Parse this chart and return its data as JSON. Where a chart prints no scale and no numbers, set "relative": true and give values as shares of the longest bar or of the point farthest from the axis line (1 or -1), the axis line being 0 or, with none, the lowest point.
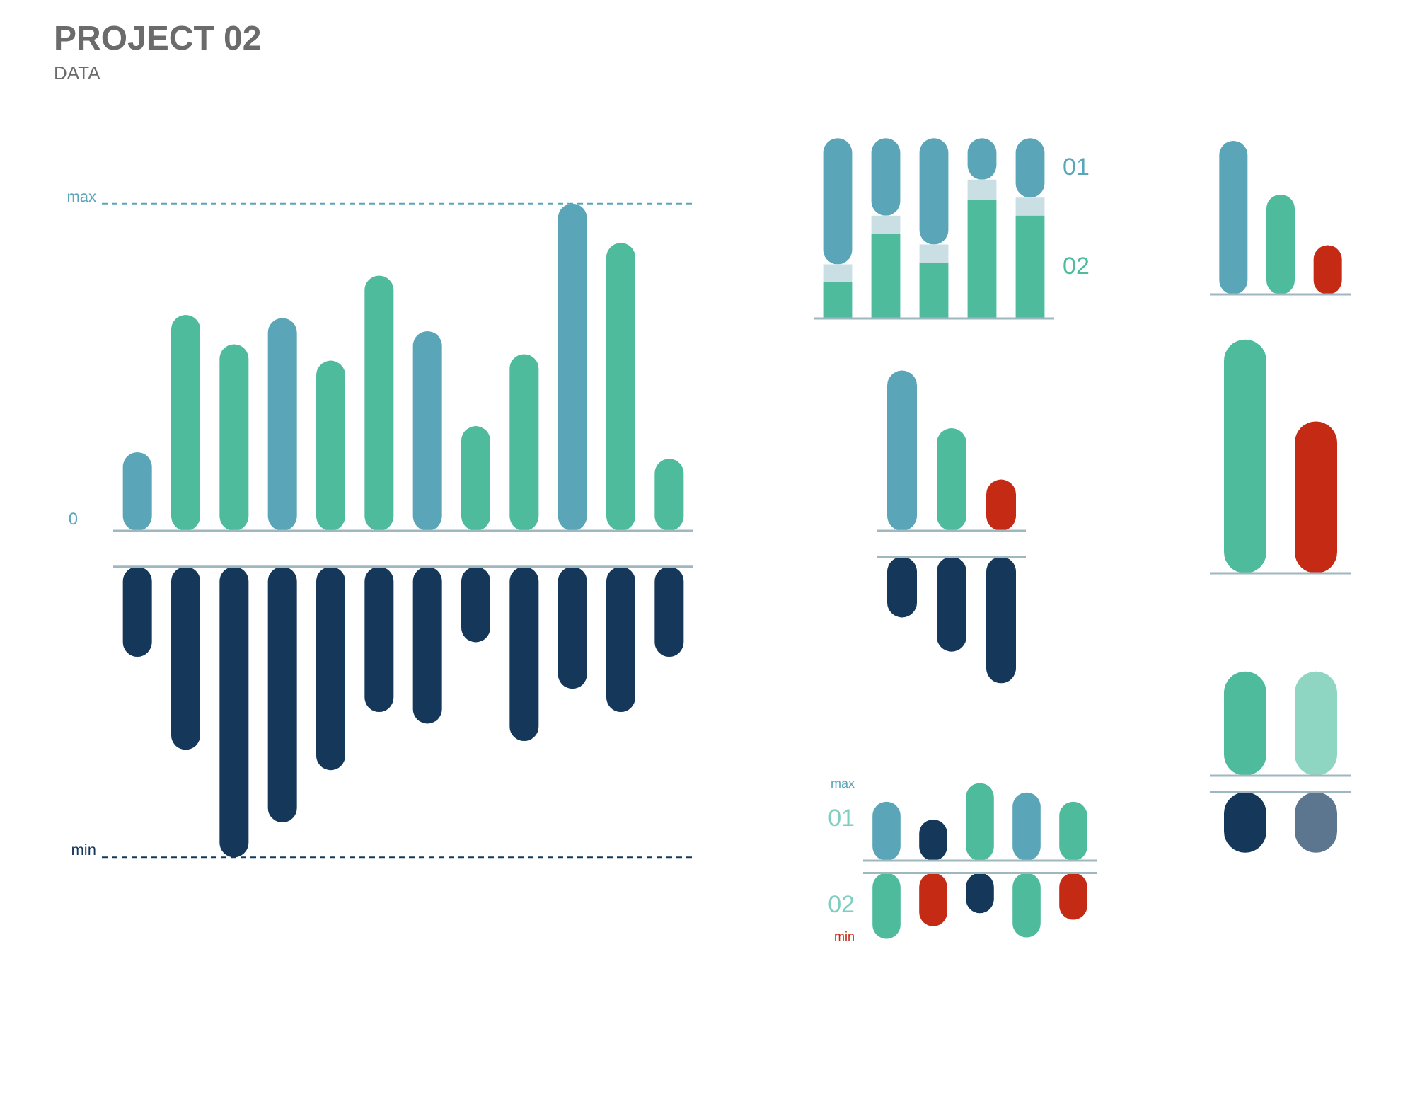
{
  "chart_data": [
    {
      "type": "bar",
      "title": "PROJECT 02",
      "subtitle": "DATA",
      "categories": [
        null,
        null,
        null,
        null,
        null,
        null,
        null,
        null,
        null,
        null,
        null,
        null
      ],
      "relative": true,
      "series": [
        {
          "colors": [
            "#5aa5b8",
            "#4dbb9c",
            "#4dbb9c",
            "#5aa5b8",
            "#4dbb9c",
            "#4dbb9c",
            "#5aa5b8",
            "#4dbb9c",
            "#4dbb9c",
            "#5aa5b8",
            "#4dbb9c",
            "#4dbb9c"
          ],
          "values": [
            0.24,
            0.66,
            0.57,
            0.65,
            0.52,
            0.78,
            0.61,
            0.32,
            0.54,
            1,
            0.88,
            0.22
          ]
        }
      ],
      "ref_lines": [
        {
          "axis": "y",
          "value": 1,
          "label": "max",
          "color": "#5aa5b8",
          "line_style": "dashed"
        }
      ],
      "annotations": [
        "0"
      ]
    },
    {
      "type": "bar",
      "categories": [
        null,
        null,
        null,
        null,
        null,
        null,
        null,
        null,
        null,
        null,
        null,
        null
      ],
      "relative": true,
      "series": [
        {
          "color": "#15385a",
          "values": [
            -0.31,
            -0.63,
            -1,
            -0.88,
            -0.7,
            -0.5,
            -0.54,
            -0.26,
            -0.6,
            -0.42,
            -0.5,
            -0.31
          ]
        }
      ],
      "ref_lines": [
        {
          "axis": "y",
          "value": -1,
          "label": "min",
          "color": "#15385a",
          "line_style": "dashed"
        }
      ]
    },
    {
      "type": "bar",
      "categories": [
        null,
        null,
        null,
        null,
        null
      ],
      "relative": true,
      "stacked": true,
      "legend": "right",
      "series": [
        {
          "name": "02",
          "color": "#4dbb9c",
          "values": [
            0.2,
            0.47,
            0.31,
            0.66,
            0.57
          ]
        },
        {
          "color": "#c9dfe4",
          "values": [
            0.1,
            0.1,
            0.1,
            0.11,
            0.1
          ]
        },
        {
          "name": "01",
          "color": "#5aa5b8",
          "values": [
            0.7,
            0.43,
            0.59,
            0.23,
            0.33
          ]
        }
      ]
    },
    {
      "type": "bar",
      "categories": [
        null,
        null,
        null
      ],
      "relative": true,
      "series": [
        {
          "colors": [
            "#5aa5b8",
            "#4dbb9c",
            "#c42a14"
          ],
          "values": [
            1,
            0.65,
            0.32
          ]
        }
      ]
    },
    {
      "type": "bar",
      "categories": [
        null,
        null,
        null
      ],
      "relative": true,
      "series": [
        {
          "colors": [
            "#5aa5b8",
            "#4dbb9c",
            "#c42a14"
          ],
          "values": [
            1,
            0.64,
            0.32
          ]
        }
      ]
    },
    {
      "type": "bar",
      "categories": [
        null,
        null,
        null
      ],
      "relative": true,
      "series": [
        {
          "color": "#15385a",
          "values": [
            -0.48,
            -0.75,
            -1
          ]
        }
      ]
    },
    {
      "type": "bar",
      "categories": [
        null,
        null
      ],
      "relative": true,
      "series": [
        {
          "colors": [
            "#4dbb9c",
            "#c42a14"
          ],
          "values": [
            1,
            0.65
          ]
        }
      ]
    },
    {
      "type": "bar",
      "categories": [
        null,
        null,
        null,
        null,
        null
      ],
      "relative": true,
      "series": [
        {
          "colors": [
            "#5aa5b8",
            "#15385a",
            "#4dbb9c",
            "#5aa5b8",
            "#4dbb9c"
          ],
          "values": [
            0.76,
            0.53,
            1,
            0.88,
            0.76
          ]
        }
      ],
      "annotations": [
        "max",
        "01"
      ]
    },
    {
      "type": "bar",
      "categories": [
        null,
        null,
        null,
        null,
        null
      ],
      "relative": true,
      "series": [
        {
          "colors": [
            "#4dbb9c",
            "#c42a14",
            "#15385a",
            "#4dbb9c",
            "#c42a14"
          ],
          "values": [
            -1,
            -0.81,
            -0.61,
            -0.98,
            -0.71
          ]
        }
      ],
      "annotations": [
        "02",
        "min"
      ]
    },
    {
      "type": "bar",
      "categories": [
        null,
        null
      ],
      "relative": true,
      "series": [
        {
          "colors": [
            "#4dbb9c",
            "#8fd6c2"
          ],
          "values": [
            1,
            1
          ]
        }
      ]
    },
    {
      "type": "bar",
      "categories": [
        null,
        null
      ],
      "relative": true,
      "series": [
        {
          "colors": [
            "#15385a",
            "#5d7690"
          ],
          "values": [
            -1,
            -1
          ]
        }
      ]
    }
  ]
}
